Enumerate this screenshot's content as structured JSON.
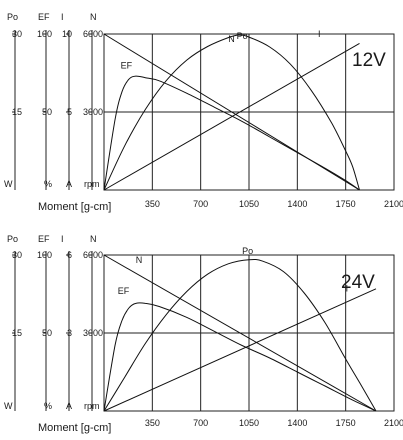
{
  "chart_data": [
    {
      "type": "line",
      "voltage_label": "12V",
      "xlabel": "Moment [g-cm]",
      "x_ticks": [
        350,
        700,
        1050,
        1400,
        1750,
        2100
      ],
      "xlim": [
        0,
        2100
      ],
      "axes": [
        {
          "id": "Po",
          "header": "Po",
          "unit": "W",
          "ticks": [
            15,
            30
          ],
          "ylim": [
            0,
            30
          ]
        },
        {
          "id": "EF",
          "header": "EF",
          "unit": "%",
          "ticks": [
            50,
            100
          ],
          "ylim": [
            0,
            100
          ]
        },
        {
          "id": "I",
          "header": "I",
          "unit": "A",
          "ticks": [
            5,
            10
          ],
          "ylim": [
            0,
            10
          ]
        },
        {
          "id": "N",
          "header": "N",
          "unit": "rpm",
          "ticks": [
            3000,
            6000
          ],
          "ylim": [
            0,
            6000
          ]
        }
      ],
      "series": [
        {
          "name": "N",
          "axis": "N",
          "x": [
            0,
            1850
          ],
          "y": [
            6000,
            0
          ]
        },
        {
          "name": "I",
          "axis": "I",
          "x": [
            0,
            1850
          ],
          "y": [
            0,
            9.4
          ]
        },
        {
          "name": "Po",
          "axis": "Po",
          "x": [
            0,
            150,
            300,
            450,
            600,
            750,
            900,
            975,
            1050,
            1200,
            1350,
            1500,
            1650,
            1750,
            1800,
            1850
          ],
          "y": [
            0,
            8.5,
            15.5,
            21,
            25,
            27.6,
            29.3,
            29.8,
            29.4,
            27.5,
            24.2,
            19.2,
            12.8,
            7.5,
            4.5,
            0
          ]
        },
        {
          "name": "EF",
          "axis": "EF",
          "x": [
            0,
            80,
            130,
            180,
            230,
            300,
            400,
            600,
            800,
            1000,
            1200,
            1400,
            1600,
            1750,
            1850
          ],
          "y": [
            0,
            45,
            63,
            71,
            73,
            72,
            70,
            62,
            53,
            44,
            34,
            24,
            14,
            6,
            0
          ]
        }
      ]
    },
    {
      "type": "line",
      "voltage_label": "24V",
      "xlabel": "Moment [g-cm]",
      "x_ticks": [
        350,
        700,
        1050,
        1400,
        1750,
        2100
      ],
      "xlim": [
        0,
        2100
      ],
      "axes": [
        {
          "id": "Po",
          "header": "Po",
          "unit": "W",
          "ticks": [
            15,
            30
          ],
          "ylim": [
            0,
            30
          ]
        },
        {
          "id": "EF",
          "header": "EF",
          "unit": "%",
          "ticks": [
            50,
            100
          ],
          "ylim": [
            0,
            100
          ]
        },
        {
          "id": "I",
          "header": "I",
          "unit": "A",
          "ticks": [
            3,
            6
          ],
          "ylim": [
            0,
            6
          ]
        },
        {
          "id": "N",
          "header": "N",
          "unit": "rpm",
          "ticks": [
            3000,
            6000
          ],
          "ylim": [
            0,
            6000
          ]
        }
      ],
      "series": [
        {
          "name": "N",
          "axis": "N",
          "x": [
            0,
            1970
          ],
          "y": [
            6000,
            0
          ]
        },
        {
          "name": "I",
          "axis": "I",
          "x": [
            0,
            1970
          ],
          "y": [
            0,
            4.7
          ]
        },
        {
          "name": "Po",
          "axis": "Po",
          "x": [
            0,
            150,
            300,
            450,
            600,
            750,
            900,
            1050,
            1150,
            1300,
            1450,
            1600,
            1750,
            1850,
            1970
          ],
          "y": [
            0,
            6.5,
            13,
            18.5,
            23,
            26.3,
            28.3,
            29.1,
            28.8,
            26.8,
            22.7,
            17,
            10,
            5.5,
            0
          ]
        },
        {
          "name": "EF",
          "axis": "EF",
          "x": [
            0,
            80,
            130,
            180,
            230,
            300,
            400,
            600,
            800,
            1000,
            1200,
            1400,
            1600,
            1800,
            1970
          ],
          "y": [
            0,
            42,
            58,
            66,
            69,
            69,
            67,
            60,
            51,
            42,
            34,
            25,
            16,
            7,
            0
          ]
        }
      ]
    }
  ]
}
